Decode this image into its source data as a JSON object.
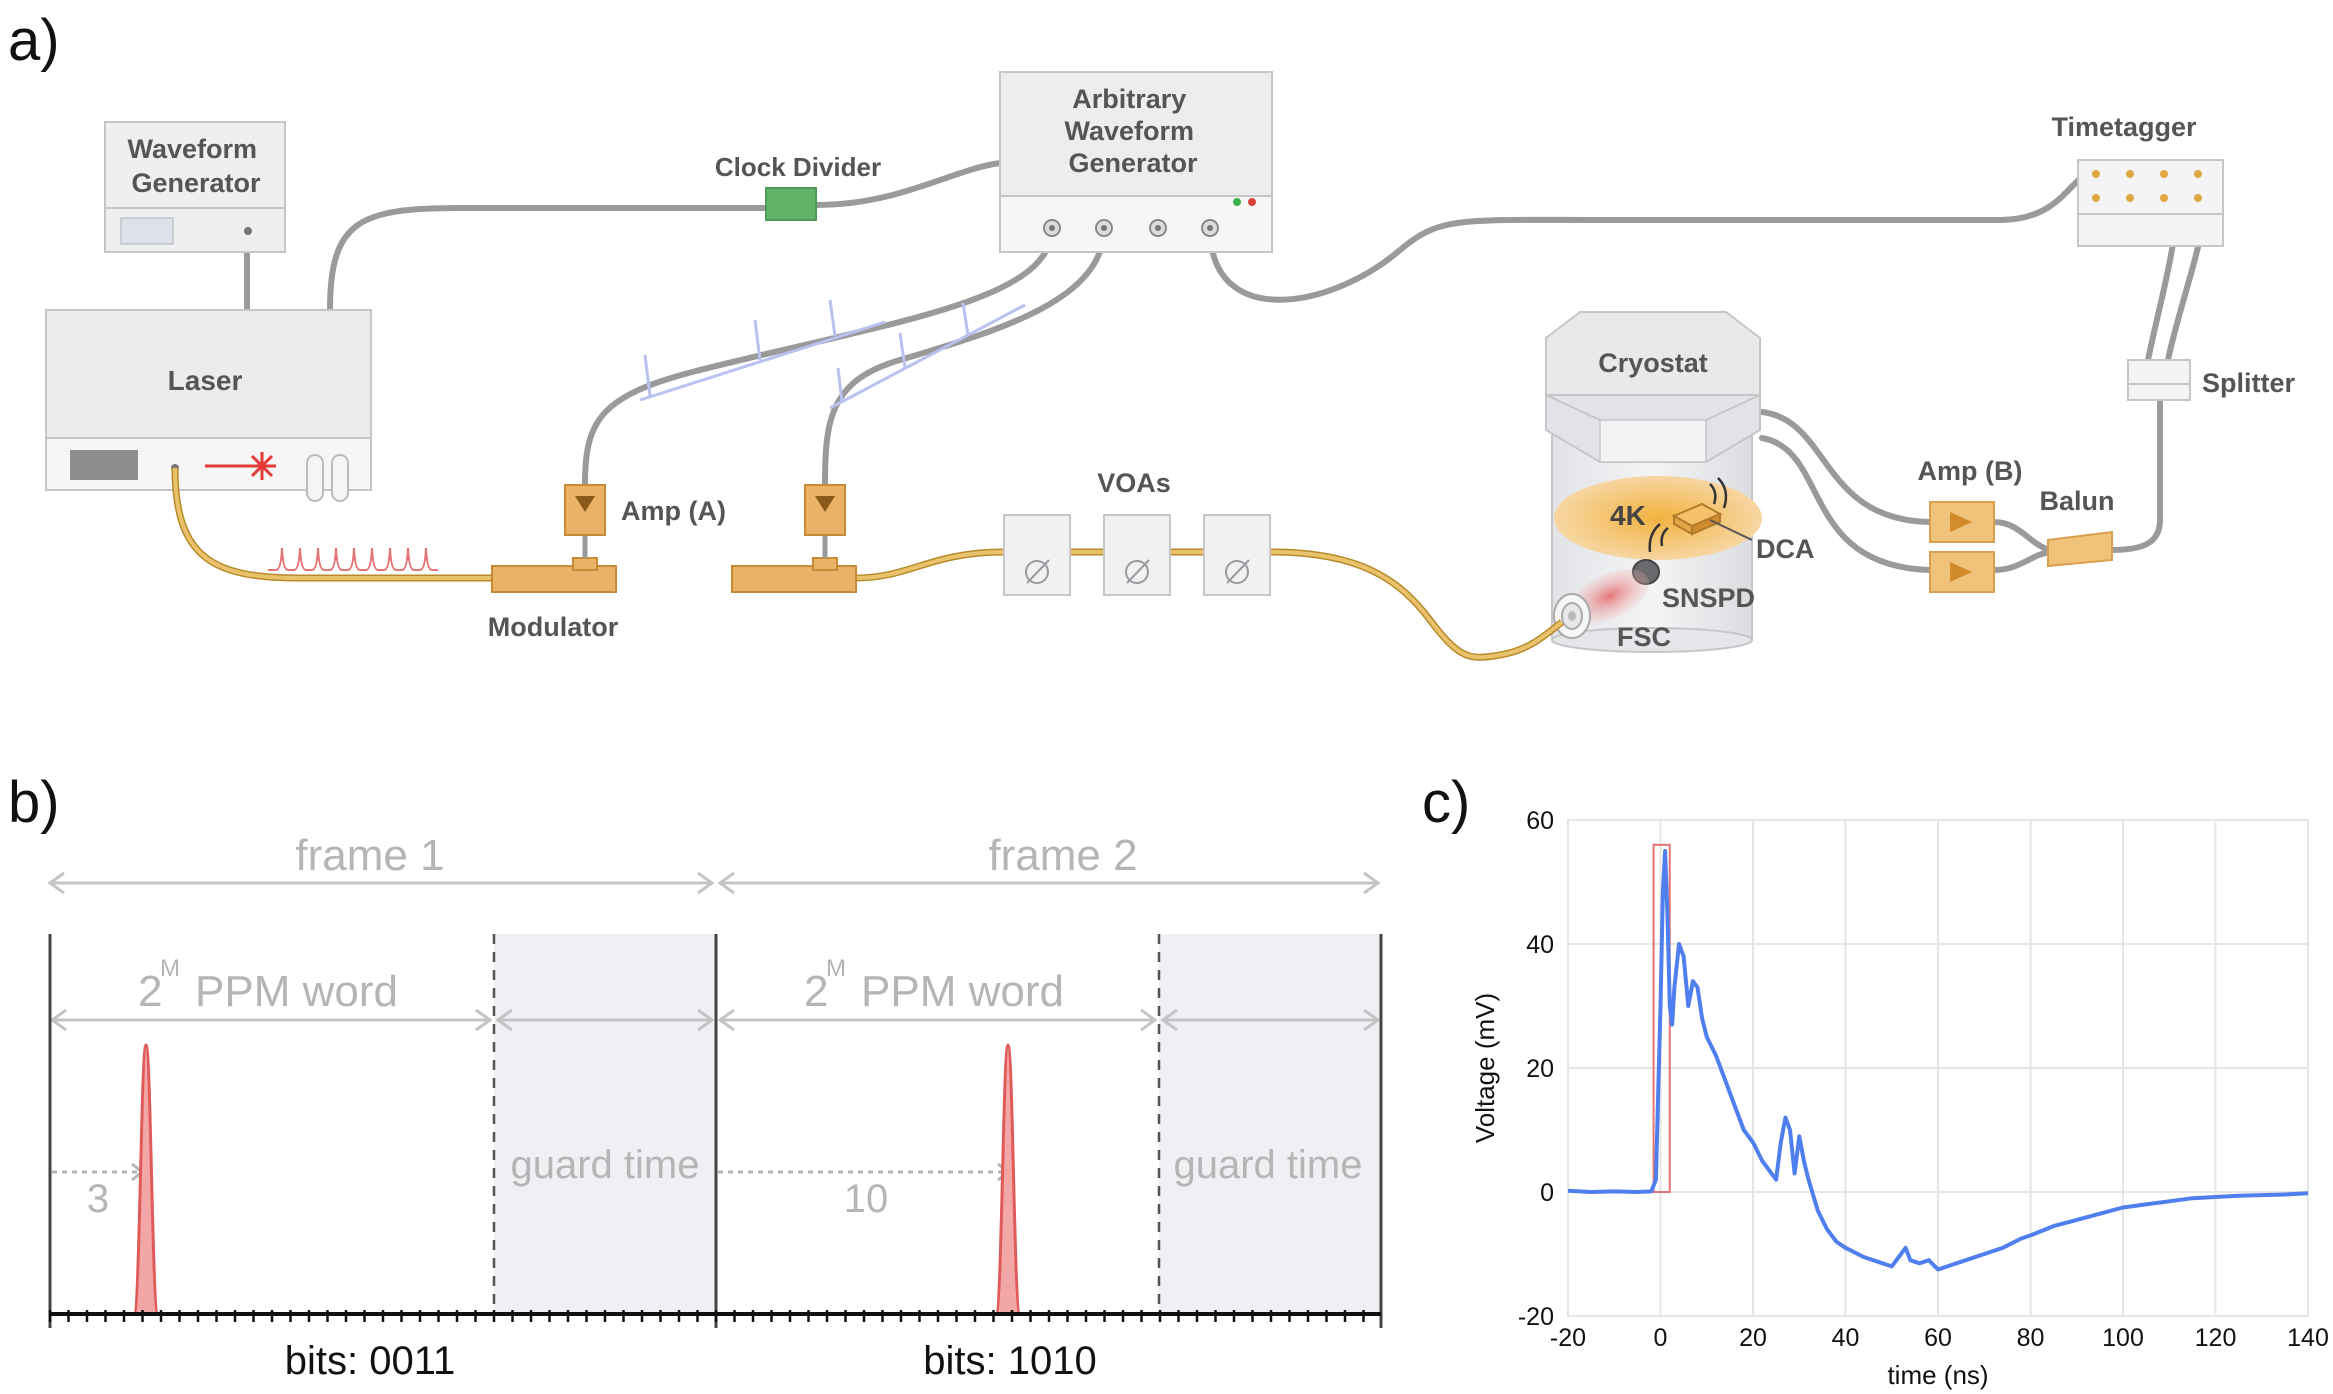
{
  "panels": {
    "a": "a)",
    "b": "b)",
    "c": "c)"
  },
  "setup": {
    "waveform_generator": "Waveform\nGenerator",
    "laser": "Laser",
    "clock_divider": "Clock Divider",
    "awg": "Arbitrary\nWaveform\nGenerator",
    "timetagger": "Timetagger",
    "cryostat": "Cryostat",
    "splitter": "Splitter",
    "amp_a": "Amp (A)",
    "amp_b": "Amp (B)",
    "balun": "Balun",
    "voas": "VOAs",
    "modulator": "Modulator",
    "temp": "4K",
    "dca": "DCA",
    "snspd": "SNSPD",
    "fsc": "FSC"
  },
  "ppm": {
    "frame1": "frame 1",
    "frame2": "frame 2",
    "word_base": "2",
    "word_exp": "M",
    "word_text": "PPM word",
    "guard": "guard time",
    "pos1": "3",
    "pos2": "10",
    "bits1": "bits: 0011",
    "bits2": "bits: 1010",
    "colors": {
      "pulse": "#e05a5a",
      "pulse_fill": "#f2a6a6",
      "guard": "#eef0f3"
    }
  },
  "chart_data": {
    "type": "line",
    "xlabel": "time (ns)",
    "ylabel": "Voltage (mV)",
    "xlim": [
      -20,
      140
    ],
    "ylim": [
      -20,
      60
    ],
    "xticks": [
      -20,
      0,
      20,
      40,
      60,
      80,
      100,
      120,
      140
    ],
    "yticks": [
      -20,
      0,
      20,
      40,
      60
    ],
    "grid": true,
    "line_color": "#4f7fef",
    "highlight_box": {
      "x": [
        -1.5,
        2
      ],
      "y": [
        0,
        56
      ]
    },
    "series": [
      {
        "x": [
          -20,
          -15,
          -10,
          -5,
          -2,
          -1,
          0,
          0.5,
          1,
          1.5,
          2,
          2.5,
          3,
          4,
          5,
          6,
          7,
          8,
          9,
          10,
          12,
          14,
          16,
          18,
          20,
          22,
          24,
          25,
          26,
          27,
          28,
          29,
          30,
          31,
          32,
          34,
          36,
          38,
          40,
          44,
          48,
          50,
          52,
          53,
          54,
          56,
          58,
          60,
          62,
          66,
          70,
          74,
          78,
          80,
          85,
          90,
          95,
          100,
          105,
          110,
          115,
          120,
          125,
          130,
          135,
          140
        ],
        "y": [
          0.2,
          0,
          0.1,
          0,
          0.1,
          2,
          30,
          48,
          55,
          45,
          30,
          27,
          33,
          40,
          38,
          30,
          34,
          33,
          28,
          25,
          22,
          18,
          14,
          10,
          8,
          5,
          3,
          2,
          8,
          12,
          10,
          3,
          9,
          5,
          2,
          -3,
          -6,
          -8,
          -9,
          -10.5,
          -11.5,
          -12,
          -10,
          -9,
          -11,
          -11.5,
          -11,
          -12.5,
          -12,
          -11,
          -10,
          -9,
          -7.5,
          -7,
          -5.5,
          -4.5,
          -3.5,
          -2.5,
          -2,
          -1.5,
          -1,
          -0.8,
          -0.6,
          -0.5,
          -0.4,
          -0.2
        ]
      }
    ]
  }
}
